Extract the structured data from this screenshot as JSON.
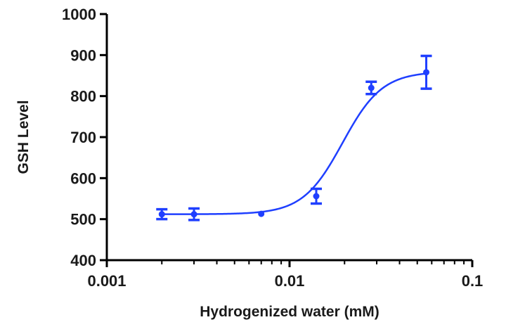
{
  "chart_data": {
    "type": "scatter",
    "title": "",
    "xlabel": "Hydrogenized water (mM)",
    "ylabel": "GSH Level",
    "x_scale": "log",
    "xlim": [
      0.001,
      0.1
    ],
    "ylim": [
      400,
      1000
    ],
    "x_ticks": [
      0.001,
      0.01,
      0.1
    ],
    "x_tick_labels": [
      "0.001",
      "0.01",
      "0.1"
    ],
    "y_ticks": [
      400,
      500,
      600,
      700,
      800,
      900,
      1000
    ],
    "y_tick_labels": [
      "400",
      "500",
      "600",
      "700",
      "800",
      "900",
      "1000"
    ],
    "grid": false,
    "legend": "none",
    "series_color": "#1f3fff",
    "points": [
      {
        "x": 0.002,
        "y": 512,
        "err": 12
      },
      {
        "x": 0.003,
        "y": 512,
        "err": 14
      },
      {
        "x": 0.007,
        "y": 513,
        "err": 0
      },
      {
        "x": 0.014,
        "y": 556,
        "err": 18
      },
      {
        "x": 0.028,
        "y": 820,
        "err": 15
      },
      {
        "x": 0.056,
        "y": 858,
        "err": 40
      }
    ],
    "fit_curve": {
      "bottom": 512,
      "top": 860,
      "ec50": 0.0195,
      "hill": 4.0
    }
  }
}
